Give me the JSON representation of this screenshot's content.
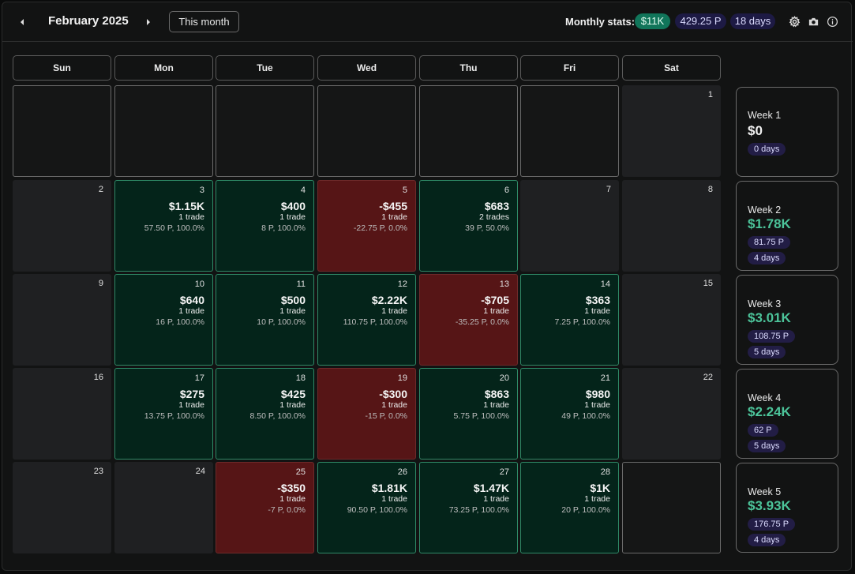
{
  "header": {
    "month": "February 2025",
    "this_month_label": "This month",
    "stats_label": "Monthly stats:",
    "stats": {
      "pnl": "$11K",
      "points": "429.25 P",
      "days": "18 days"
    },
    "icons": [
      "prev-arrow-icon",
      "next-arrow-icon",
      "gear-icon",
      "camera-icon",
      "info-icon"
    ]
  },
  "days_of_week": [
    "Sun",
    "Mon",
    "Tue",
    "Wed",
    "Thu",
    "Fri",
    "Sat"
  ],
  "colors": {
    "win_bg": "#04241a",
    "win_border": "#2f8a67",
    "loss_bg": "#561516",
    "accent_green": "#4cc49a",
    "pill_purple": "#1d1a44"
  },
  "weeks_grid": [
    [
      {
        "type": "empty"
      },
      {
        "type": "empty"
      },
      {
        "type": "empty"
      },
      {
        "type": "empty"
      },
      {
        "type": "empty"
      },
      {
        "type": "empty"
      },
      {
        "type": "notrade",
        "day": "1"
      }
    ],
    [
      {
        "type": "notrade",
        "day": "2"
      },
      {
        "type": "win",
        "day": "3",
        "pnl": "$1.15K",
        "trades": "1 trade",
        "pts": "57.50 P, 100.0%"
      },
      {
        "type": "win",
        "day": "4",
        "pnl": "$400",
        "trades": "1 trade",
        "pts": "8 P, 100.0%"
      },
      {
        "type": "loss",
        "day": "5",
        "pnl": "-$455",
        "trades": "1 trade",
        "pts": "-22.75 P, 0.0%"
      },
      {
        "type": "win",
        "day": "6",
        "pnl": "$683",
        "trades": "2 trades",
        "pts": "39 P, 50.0%"
      },
      {
        "type": "notrade",
        "day": "7"
      },
      {
        "type": "notrade",
        "day": "8"
      }
    ],
    [
      {
        "type": "notrade",
        "day": "9"
      },
      {
        "type": "win",
        "day": "10",
        "pnl": "$640",
        "trades": "1 trade",
        "pts": "16 P, 100.0%"
      },
      {
        "type": "win",
        "day": "11",
        "pnl": "$500",
        "trades": "1 trade",
        "pts": "10 P, 100.0%"
      },
      {
        "type": "win",
        "day": "12",
        "pnl": "$2.22K",
        "trades": "1 trade",
        "pts": "110.75 P, 100.0%"
      },
      {
        "type": "loss",
        "day": "13",
        "pnl": "-$705",
        "trades": "1 trade",
        "pts": "-35.25 P, 0.0%"
      },
      {
        "type": "win",
        "day": "14",
        "pnl": "$363",
        "trades": "1 trade",
        "pts": "7.25 P, 100.0%"
      },
      {
        "type": "notrade",
        "day": "15"
      }
    ],
    [
      {
        "type": "notrade",
        "day": "16"
      },
      {
        "type": "win",
        "day": "17",
        "pnl": "$275",
        "trades": "1 trade",
        "pts": "13.75 P, 100.0%"
      },
      {
        "type": "win",
        "day": "18",
        "pnl": "$425",
        "trades": "1 trade",
        "pts": "8.50 P, 100.0%"
      },
      {
        "type": "loss",
        "day": "19",
        "pnl": "-$300",
        "trades": "1 trade",
        "pts": "-15 P, 0.0%"
      },
      {
        "type": "win",
        "day": "20",
        "pnl": "$863",
        "trades": "1 trade",
        "pts": "5.75 P, 100.0%"
      },
      {
        "type": "win",
        "day": "21",
        "pnl": "$980",
        "trades": "1 trade",
        "pts": "49 P, 100.0%"
      },
      {
        "type": "notrade",
        "day": "22"
      }
    ],
    [
      {
        "type": "notrade",
        "day": "23"
      },
      {
        "type": "notrade",
        "day": "24"
      },
      {
        "type": "loss",
        "day": "25",
        "pnl": "-$350",
        "trades": "1 trade",
        "pts": "-7 P, 0.0%"
      },
      {
        "type": "win",
        "day": "26",
        "pnl": "$1.81K",
        "trades": "1 trade",
        "pts": "90.50 P, 100.0%"
      },
      {
        "type": "win",
        "day": "27",
        "pnl": "$1.47K",
        "trades": "1 trade",
        "pts": "73.25 P, 100.0%"
      },
      {
        "type": "win",
        "day": "28",
        "pnl": "$1K",
        "trades": "1 trade",
        "pts": "20 P, 100.0%"
      },
      {
        "type": "empty"
      }
    ]
  ],
  "week_summaries": [
    {
      "label": "Week 1",
      "value": "$0",
      "points": null,
      "days": "0 days",
      "positive": false
    },
    {
      "label": "Week 2",
      "value": "$1.78K",
      "points": "81.75 P",
      "days": "4 days",
      "positive": true
    },
    {
      "label": "Week 3",
      "value": "$3.01K",
      "points": "108.75 P",
      "days": "5 days",
      "positive": true
    },
    {
      "label": "Week 4",
      "value": "$2.24K",
      "points": "62 P",
      "days": "5 days",
      "positive": true
    },
    {
      "label": "Week 5",
      "value": "$3.93K",
      "points": "176.75 P",
      "days": "4 days",
      "positive": true
    }
  ]
}
